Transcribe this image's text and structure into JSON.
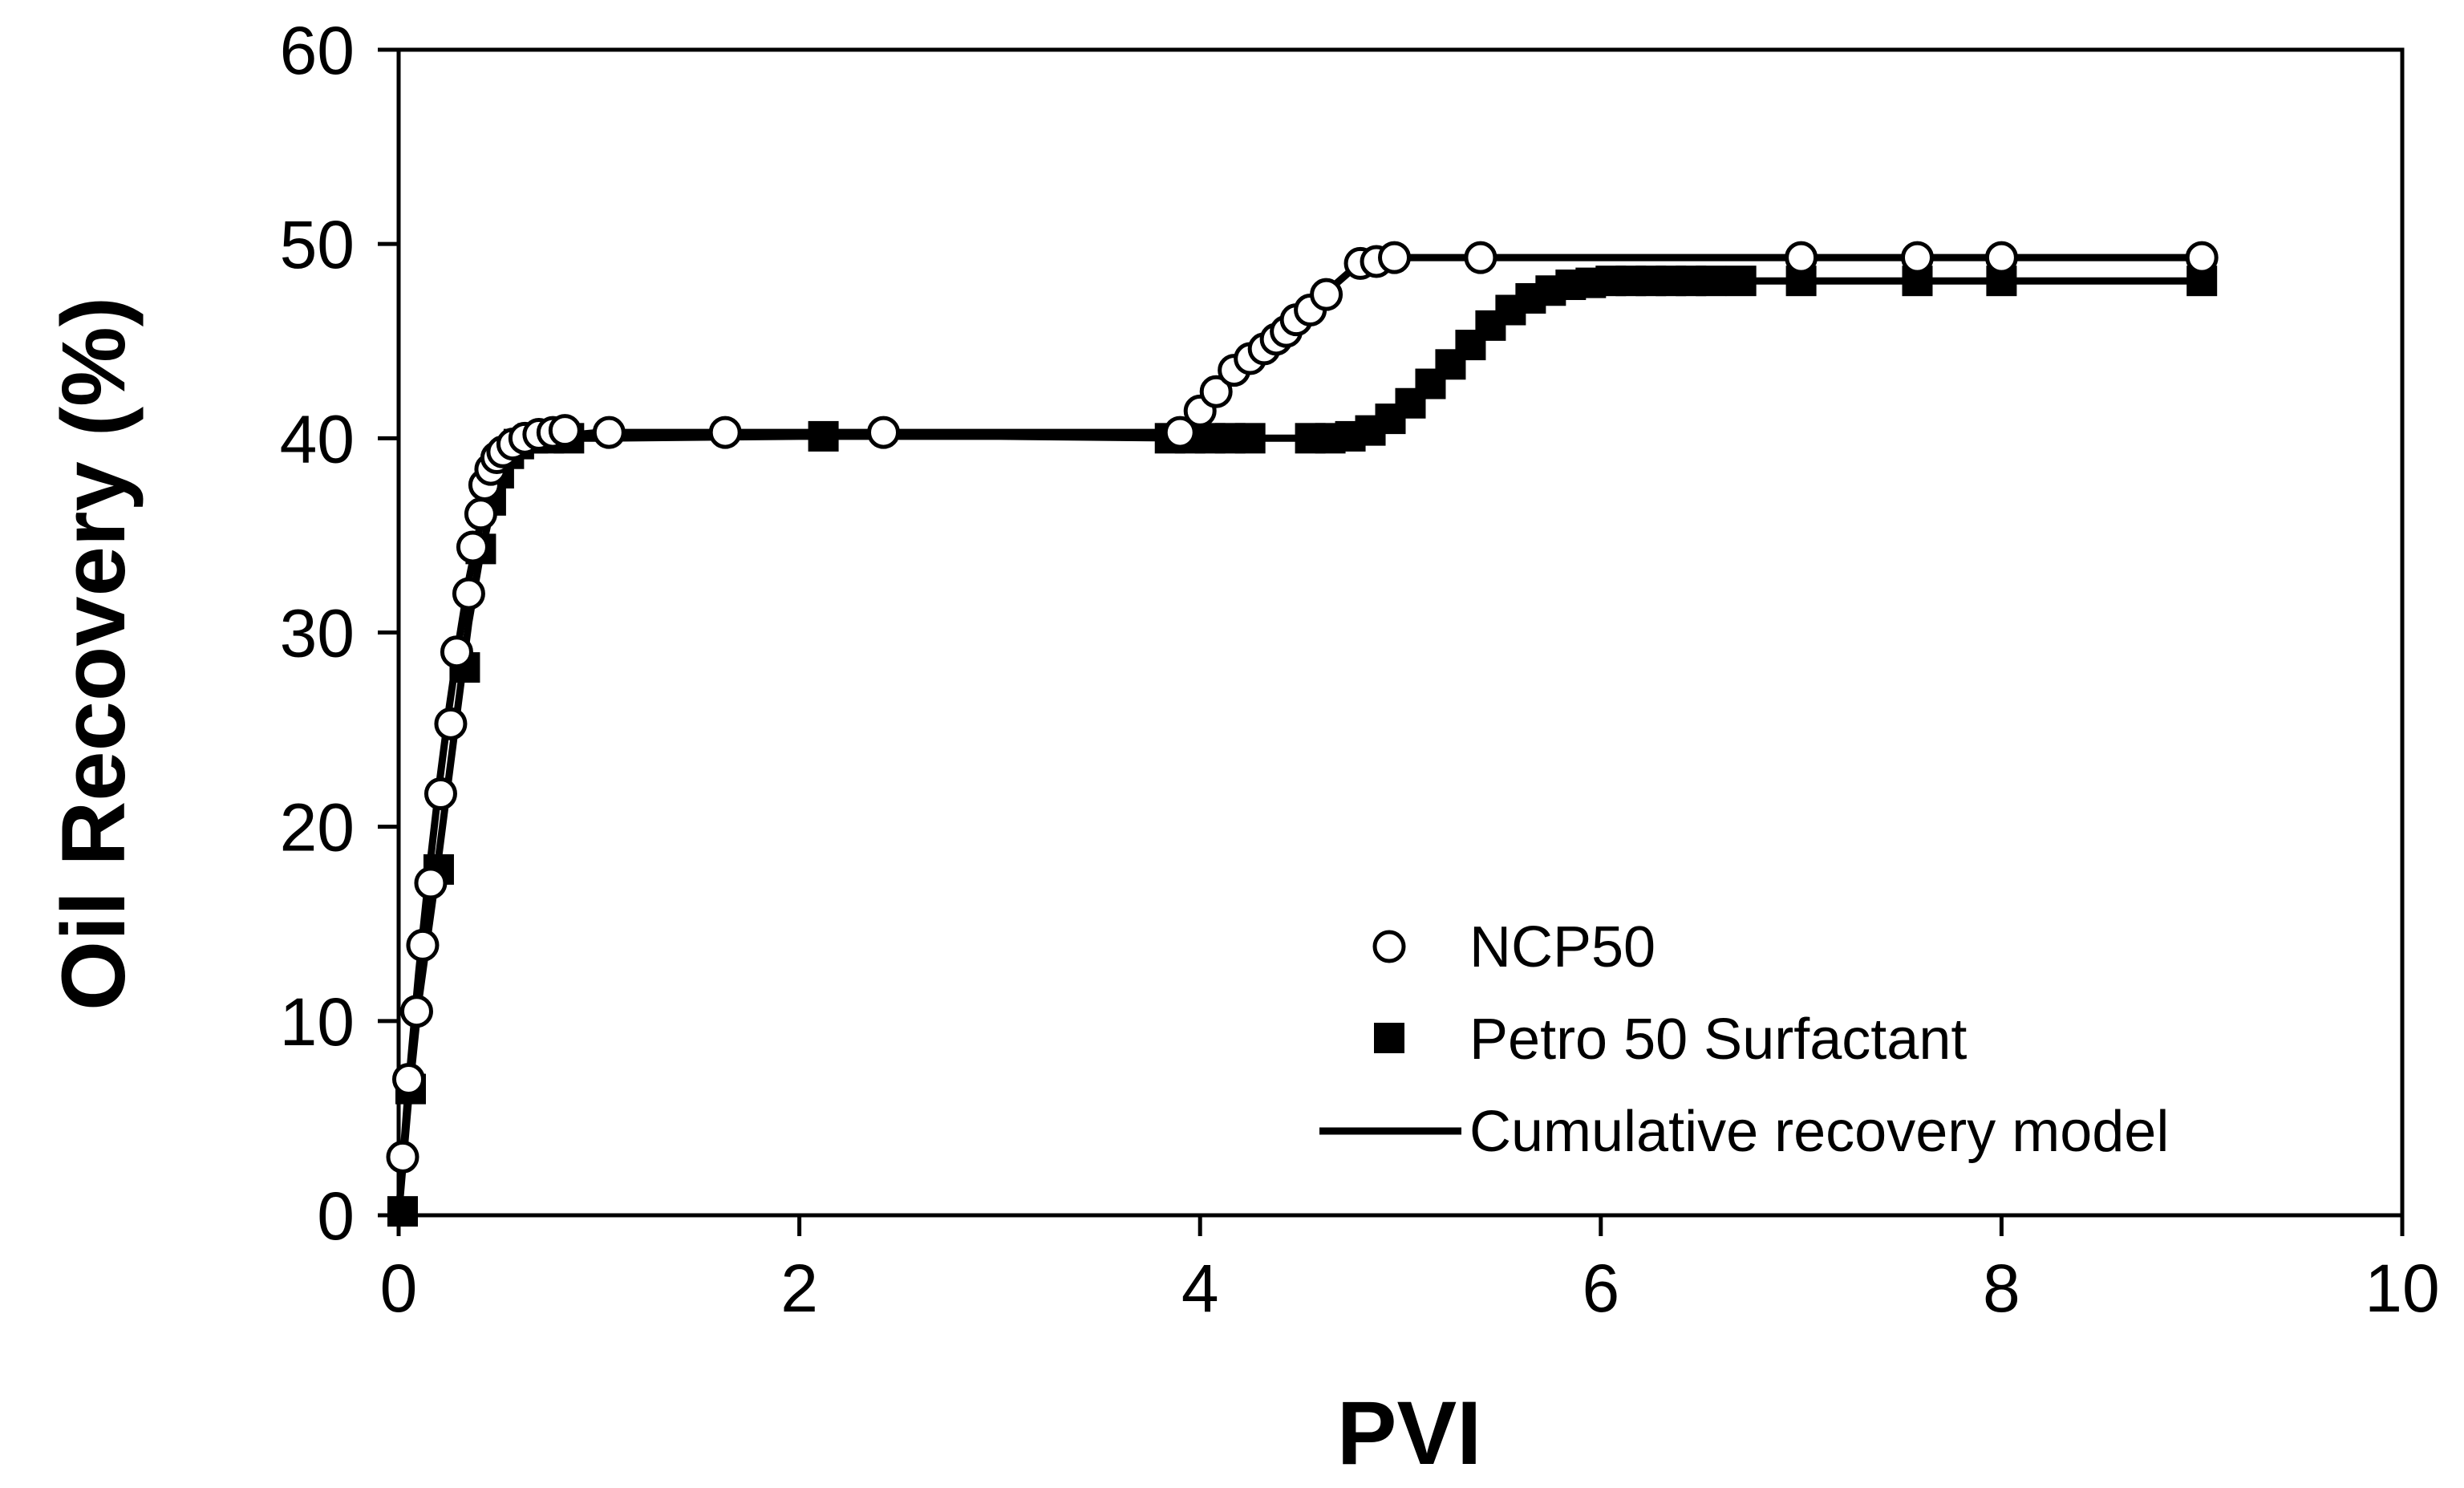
{
  "chart_data": {
    "type": "scatter",
    "title": "",
    "xlabel": "PVI",
    "ylabel": "Oil Recovery (%)",
    "xlim": [
      0,
      10
    ],
    "ylim": [
      0,
      60
    ],
    "xticks": [
      0,
      2,
      4,
      6,
      8,
      10
    ],
    "yticks": [
      0,
      10,
      20,
      30,
      40,
      50,
      60
    ],
    "grid": false,
    "legend_position": "bottom-right",
    "series": [
      {
        "name": "NCP50",
        "marker": "open-circle",
        "x": [
          0.02,
          0.05,
          0.09,
          0.12,
          0.16,
          0.21,
          0.26,
          0.29,
          0.35,
          0.37,
          0.41,
          0.43,
          0.46,
          0.49,
          0.52,
          0.57,
          0.63,
          0.7,
          0.77,
          0.83,
          1.05,
          1.63,
          2.42,
          3.9,
          4.0,
          4.08,
          4.17,
          4.25,
          4.32,
          4.38,
          4.43,
          4.48,
          4.55,
          4.63,
          4.8,
          4.88,
          4.97,
          5.4,
          7.0,
          7.58,
          8.0,
          9.0
        ],
        "y": [
          3.0,
          7.0,
          10.5,
          13.9,
          17.1,
          21.7,
          25.3,
          29.0,
          32.0,
          34.4,
          36.1,
          37.6,
          38.4,
          39.0,
          39.3,
          39.7,
          40.0,
          40.2,
          40.3,
          40.4,
          40.3,
          40.3,
          40.3,
          40.3,
          41.4,
          42.4,
          43.5,
          44.1,
          44.6,
          45.1,
          45.5,
          46.1,
          46.6,
          47.4,
          49.0,
          49.1,
          49.3,
          49.3,
          49.3,
          49.3,
          49.3,
          49.3
        ]
      },
      {
        "name": "Petro 50 Surfactant",
        "marker": "filled-square",
        "x": [
          0.02,
          0.06,
          0.2,
          0.33,
          0.41,
          0.46,
          0.5,
          0.55,
          0.6,
          0.67,
          0.75,
          0.85,
          2.12,
          3.85,
          3.95,
          4.05,
          4.15,
          4.25,
          4.55,
          4.65,
          4.75,
          4.85,
          4.95,
          5.05,
          5.15,
          5.25,
          5.35,
          5.45,
          5.55,
          5.65,
          5.75,
          5.85,
          5.95,
          6.05,
          6.15,
          6.25,
          6.35,
          6.45,
          6.55,
          6.7,
          7.0,
          7.58,
          8.0,
          9.0
        ],
        "y": [
          0.2,
          6.5,
          17.8,
          28.2,
          34.3,
          36.8,
          38.2,
          39.2,
          39.7,
          40.0,
          40.0,
          40.0,
          40.1,
          40.0,
          40.0,
          40.0,
          40.0,
          40.0,
          40.0,
          40.0,
          40.1,
          40.4,
          41.0,
          41.8,
          42.8,
          43.8,
          44.8,
          45.8,
          46.6,
          47.2,
          47.6,
          47.9,
          48.0,
          48.1,
          48.1,
          48.1,
          48.1,
          48.1,
          48.1,
          48.1,
          48.1,
          48.1,
          48.1,
          48.1
        ]
      },
      {
        "name": "Cumulative recovery model",
        "marker": "line",
        "curves": [
          {
            "x": [
              0,
              0.05,
              0.1,
              0.15,
              0.2,
              0.25,
              0.3,
              0.35,
              0.4,
              0.45,
              0.5,
              0.55,
              0.6,
              0.65,
              0.7,
              0.8,
              1.0,
              2.0,
              3.0,
              3.85,
              3.95,
              4.05,
              4.15,
              4.25,
              4.35,
              4.45,
              4.55,
              4.65,
              4.75,
              4.85,
              5.0,
              6.0,
              7.0,
              8.0,
              9.0
            ],
            "y": [
              0,
              6.8,
              12.5,
              17.5,
              22.0,
              26.0,
              29.5,
              32.7,
              35.2,
              37.0,
              38.3,
              39.2,
              39.6,
              39.9,
              40.0,
              40.1,
              40.3,
              40.3,
              40.3,
              40.3,
              41.0,
              42.2,
              43.3,
              44.2,
              45.0,
              45.9,
              46.8,
              47.7,
              48.6,
              49.2,
              49.3,
              49.3,
              49.3,
              49.3,
              49.3
            ]
          },
          {
            "x": [
              0,
              0.05,
              0.1,
              0.2,
              0.3,
              0.35,
              0.4,
              0.45,
              0.5,
              0.55,
              0.6,
              0.7,
              0.8,
              1.0,
              2.0,
              3.0,
              4.0,
              4.6,
              4.8,
              4.9,
              5.0,
              5.1,
              5.2,
              5.3,
              5.4,
              5.5,
              5.6,
              5.7,
              5.8,
              5.9,
              6.0,
              6.2,
              7.0,
              8.0,
              9.0
            ],
            "y": [
              0,
              6.0,
              11.0,
              18.5,
              26.5,
              30.5,
              33.5,
              35.8,
              37.8,
              39.0,
              39.6,
              40.0,
              40.0,
              40.0,
              40.1,
              40.1,
              40.0,
              40.0,
              40.2,
              40.6,
              41.2,
              42.0,
              43.0,
              44.1,
              45.1,
              46.0,
              46.7,
              47.3,
              47.7,
              47.9,
              48.0,
              48.1,
              48.1,
              48.1,
              48.1
            ]
          }
        ]
      }
    ]
  }
}
